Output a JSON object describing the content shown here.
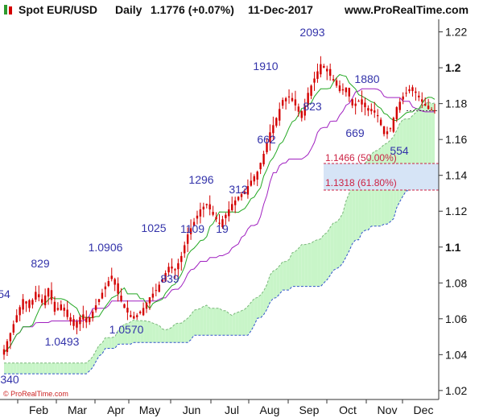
{
  "header": {
    "instrument": "Spot EUR/USD",
    "timeframe": "Daily",
    "last_price": "1.1776 (+0.07%)",
    "date": "11-Dec-2017",
    "site": "www.ProRealTime.com"
  },
  "copyright": "© ProRealTime.com",
  "colors": {
    "up": "#d40000",
    "down": "#d40000",
    "tenkan": "#22a822",
    "kijun": "#a020c0",
    "cloud_bull": "#c8f5c8",
    "cloud_bear": "#f5b8dc",
    "price_label": "#3333aa",
    "fib": "#cc2244",
    "fib_band": "#d6e4f6"
  },
  "chart_data": {
    "type": "candlestick",
    "title": "Spot EUR/USD Daily",
    "y_range": [
      1.015,
      1.227
    ],
    "y_ticks": [
      {
        "value": 1.02,
        "label": "1.02",
        "bold": false
      },
      {
        "value": 1.04,
        "label": "1.04",
        "bold": false
      },
      {
        "value": 1.06,
        "label": "1.06",
        "bold": false
      },
      {
        "value": 1.08,
        "label": "1.08",
        "bold": false
      },
      {
        "value": 1.1,
        "label": "1.1",
        "bold": true
      },
      {
        "value": 1.12,
        "label": "1.12",
        "bold": false
      },
      {
        "value": 1.14,
        "label": "1.14",
        "bold": false
      },
      {
        "value": 1.16,
        "label": "1.16",
        "bold": false
      },
      {
        "value": 1.18,
        "label": "1.18",
        "bold": false
      },
      {
        "value": 1.2,
        "label": "1.2",
        "bold": true
      },
      {
        "value": 1.22,
        "label": "1.22",
        "bold": false
      }
    ],
    "x_months": [
      "Feb",
      "Mar",
      "Apr",
      "May",
      "Jun",
      "Jul",
      "Aug",
      "Sep",
      "Oct",
      "Nov",
      "Dec"
    ],
    "close_path": [
      [
        0,
        1.043
      ],
      [
        2,
        1.052
      ],
      [
        4,
        1.062
      ],
      [
        6,
        1.071
      ],
      [
        8,
        1.066
      ],
      [
        10,
        1.075
      ],
      [
        12,
        1.069
      ],
      [
        14,
        1.077
      ],
      [
        16,
        1.064
      ],
      [
        18,
        1.068
      ],
      [
        20,
        1.061
      ],
      [
        22,
        1.056
      ],
      [
        24,
        1.061
      ],
      [
        26,
        1.058
      ],
      [
        28,
        1.064
      ],
      [
        30,
        1.071
      ],
      [
        32,
        1.078
      ],
      [
        34,
        1.084
      ],
      [
        36,
        1.074
      ],
      [
        38,
        1.066
      ],
      [
        40,
        1.061
      ],
      [
        42,
        1.062
      ],
      [
        44,
        1.066
      ],
      [
        46,
        1.072
      ],
      [
        48,
        1.076
      ],
      [
        50,
        1.082
      ],
      [
        52,
        1.089
      ],
      [
        54,
        1.087
      ],
      [
        56,
        1.095
      ],
      [
        58,
        1.107
      ],
      [
        60,
        1.114
      ],
      [
        62,
        1.121
      ],
      [
        64,
        1.124
      ],
      [
        66,
        1.118
      ],
      [
        68,
        1.113
      ],
      [
        70,
        1.118
      ],
      [
        72,
        1.124
      ],
      [
        74,
        1.128
      ],
      [
        76,
        1.131
      ],
      [
        78,
        1.137
      ],
      [
        80,
        1.142
      ],
      [
        82,
        1.152
      ],
      [
        84,
        1.164
      ],
      [
        86,
        1.172
      ],
      [
        88,
        1.182
      ],
      [
        90,
        1.184
      ],
      [
        92,
        1.179
      ],
      [
        94,
        1.172
      ],
      [
        96,
        1.186
      ],
      [
        98,
        1.194
      ],
      [
        100,
        1.202
      ],
      [
        102,
        1.198
      ],
      [
        104,
        1.193
      ],
      [
        106,
        1.187
      ],
      [
        108,
        1.189
      ],
      [
        110,
        1.179
      ],
      [
        112,
        1.181
      ],
      [
        114,
        1.178
      ],
      [
        116,
        1.177
      ],
      [
        118,
        1.173
      ],
      [
        120,
        1.163
      ],
      [
        122,
        1.166
      ],
      [
        124,
        1.178
      ],
      [
        126,
        1.184
      ],
      [
        128,
        1.188
      ],
      [
        130,
        1.186
      ],
      [
        132,
        1.181
      ],
      [
        134,
        1.177
      ],
      [
        136,
        1.176
      ]
    ],
    "annotations": [
      {
        "text": "2093",
        "kind": "high"
      },
      {
        "text": "1910",
        "kind": "high"
      },
      {
        "text": "1880",
        "kind": "high"
      },
      {
        "text": "823",
        "kind": "low"
      },
      {
        "text": "662",
        "kind": "low"
      },
      {
        "text": "669",
        "kind": "low"
      },
      {
        "text": "554",
        "kind": "low"
      },
      {
        "text": "1296",
        "kind": "high"
      },
      {
        "text": "312",
        "kind": "low"
      },
      {
        "text": "1025",
        "kind": "high"
      },
      {
        "text": "1109",
        "kind": "low"
      },
      {
        "text": "19",
        "kind": "low"
      },
      {
        "text": "1.0906",
        "kind": "high"
      },
      {
        "text": "839",
        "kind": "low"
      },
      {
        "text": "829",
        "kind": "high"
      },
      {
        "text": "54",
        "kind": "low"
      },
      {
        "text": "1.0570",
        "kind": "low"
      },
      {
        "text": "1.0493",
        "kind": "low"
      },
      {
        "text": "340",
        "kind": "low"
      }
    ],
    "fib_levels": [
      {
        "value": 1.1466,
        "label": "1.1466 (50.00%)"
      },
      {
        "value": 1.1318,
        "label": "1.1318 (61.80%)"
      }
    ],
    "legend": "none",
    "grid": false
  }
}
